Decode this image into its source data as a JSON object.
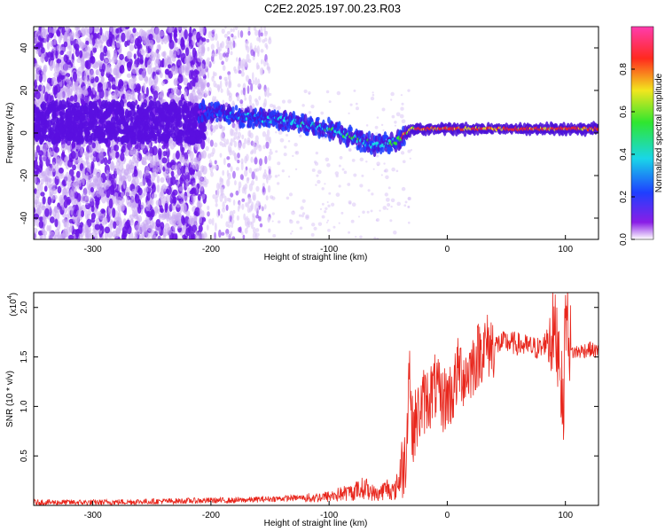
{
  "title": "C2E2.2025.197.00.23.R03",
  "colors": {
    "snr_line": "#e8261c",
    "scatter_purple": "#6a14e6",
    "scatter_light": "#c9a8f2",
    "frame": "#000000"
  },
  "chart_data": [
    {
      "type": "heatmap",
      "xlabel": "Height of straight line (km)",
      "ylabel": "Frequency (Hz)",
      "xlim": [
        -350,
        128
      ],
      "ylim": [
        -50,
        50
      ],
      "x_ticks": [
        -300,
        -200,
        -100,
        0,
        100
      ],
      "y_ticks": [
        -40,
        -20,
        0,
        20,
        40
      ],
      "colorbar": {
        "label": "Normalized spectral amplitude",
        "range": [
          0,
          1
        ],
        "ticks": [
          "0.0",
          "0.2",
          "0.4",
          "0.6",
          "0.8"
        ],
        "colormap": [
          "#ffffff",
          "#8a1ee6",
          "#1f3fff",
          "#19d6e8",
          "#2fe62f",
          "#f2e61e",
          "#ff2a1e",
          "#ff3cae"
        ]
      },
      "ridge": {
        "x": [
          -205,
          -180,
          -160,
          -140,
          -120,
          -100,
          -80,
          -60,
          -50,
          -40,
          -30,
          0,
          50,
          100,
          128
        ],
        "frequency": [
          10,
          8,
          7,
          6,
          4,
          2,
          -2,
          -6,
          -5,
          -3,
          2,
          2,
          2,
          2,
          2
        ],
        "amplitude": [
          0.35,
          0.4,
          0.42,
          0.45,
          0.5,
          0.5,
          0.55,
          0.45,
          0.5,
          0.8,
          0.9,
          0.95,
          0.95,
          0.95,
          0.9
        ]
      }
    },
    {
      "type": "line",
      "xlabel": "Height of straight line (km)",
      "ylabel": "SNR (10 * v/v)",
      "y_scale_label": "(x10",
      "y_scale_exponent": "4",
      "xlim": [
        -350,
        128
      ],
      "ylim": [
        0,
        2.15
      ],
      "x_ticks": [
        -300,
        -200,
        -100,
        0,
        100
      ],
      "y_ticks": [
        "0.5",
        "1.0",
        "1.5",
        "2.0"
      ],
      "grid": false,
      "series": [
        {
          "x": [
            -350,
            -300,
            -250,
            -200,
            -180,
            -160,
            -140,
            -120,
            -100,
            -90,
            -80,
            -70,
            -60,
            -50,
            -45,
            -40,
            -35,
            -32,
            -30,
            -25,
            -20,
            -15,
            -10,
            -5,
            0,
            5,
            10,
            15,
            20,
            25,
            30,
            40,
            50,
            60,
            70,
            80,
            85,
            90,
            95,
            98,
            100,
            105,
            110,
            120,
            128
          ],
          "values": [
            0.03,
            0.03,
            0.04,
            0.05,
            0.05,
            0.06,
            0.07,
            0.08,
            0.1,
            0.13,
            0.15,
            0.2,
            0.12,
            0.2,
            0.15,
            0.3,
            0.5,
            1.5,
            0.75,
            0.9,
            1.05,
            1.1,
            1.2,
            1.05,
            1.1,
            1.15,
            1.4,
            1.3,
            1.4,
            1.5,
            1.6,
            1.62,
            1.65,
            1.63,
            1.6,
            1.58,
            1.7,
            1.75,
            1.6,
            0.85,
            2.0,
            1.55,
            1.55,
            1.58,
            1.55
          ]
        }
      ]
    }
  ]
}
